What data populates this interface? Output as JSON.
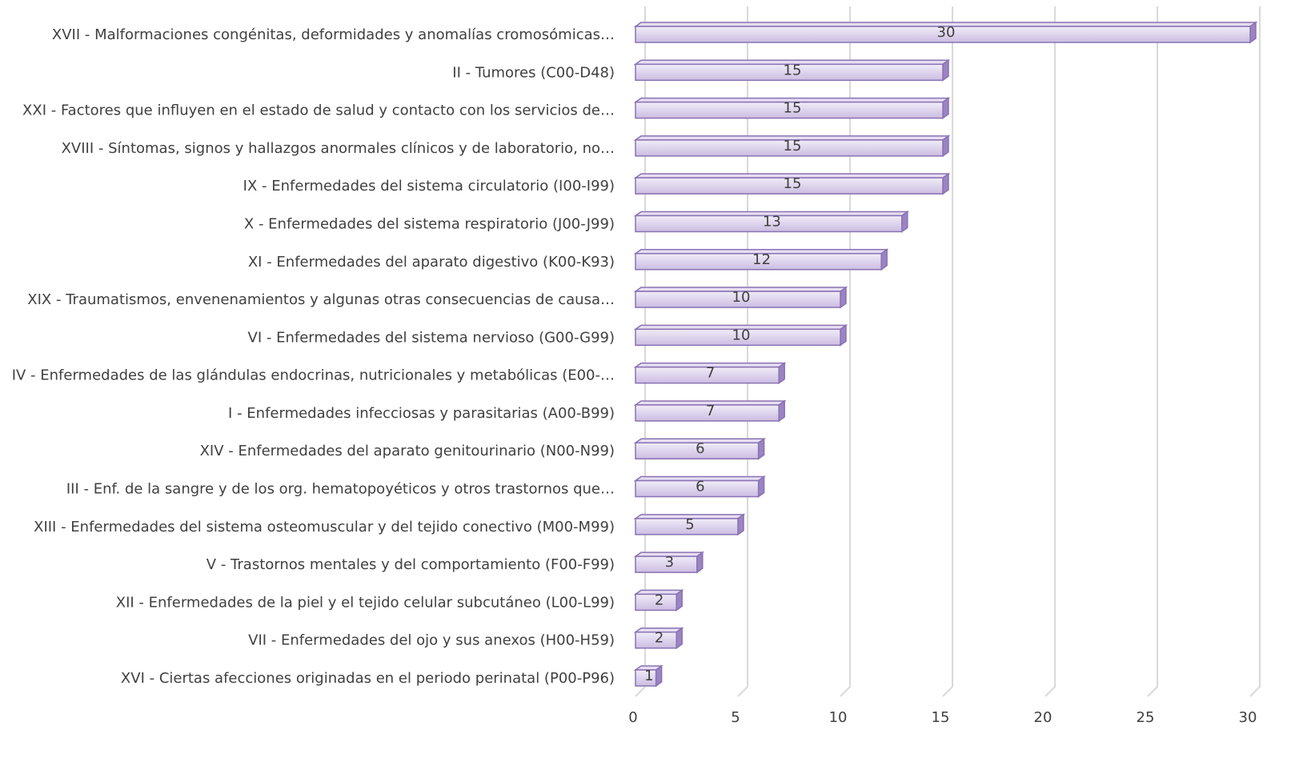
{
  "chart_data": {
    "type": "bar",
    "orientation": "horizontal",
    "categories": [
      "XVII - Malformaciones congénitas, deformidades y anomalías cromosómicas…",
      "II - Tumores (C00-D48)",
      "XXI - Factores que influyen en el estado de salud y contacto con los servicios de…",
      "XVIII - Síntomas, signos y hallazgos anormales clínicos y de laboratorio, no…",
      "IX - Enfermedades del sistema circulatorio (I00-I99)",
      "X - Enfermedades del sistema respiratorio (J00-J99)",
      "XI - Enfermedades del aparato digestivo (K00-K93)",
      "XIX - Traumatismos, envenenamientos y algunas otras consecuencias de causa…",
      "VI - Enfermedades del sistema nervioso (G00-G99)",
      "IV - Enfermedades de las glándulas endocrinas, nutricionales y metabólicas (E00-…",
      "I - Enfermedades infecciosas y parasitarias (A00-B99)",
      "XIV - Enfermedades del aparato genitourinario (N00-N99)",
      "III - Enf. de la sangre y de los org. hematopoyéticos y otros trastornos que…",
      "XIII - Enfermedades del sistema osteomuscular y del tejido conectivo (M00-M99)",
      "V - Trastornos mentales y del comportamiento (F00-F99)",
      "XII - Enfermedades de la piel y el tejido celular subcutáneo (L00-L99)",
      "VII - Enfermedades del ojo y sus anexos (H00-H59)",
      "XVI - Ciertas afecciones originadas en el periodo perinatal (P00-P96)"
    ],
    "values": [
      30,
      15,
      15,
      15,
      15,
      13,
      12,
      10,
      10,
      7,
      7,
      6,
      6,
      5,
      3,
      2,
      2,
      1
    ],
    "color": "#d9cdea",
    "xlim": [
      0,
      30
    ],
    "xticks": [
      0,
      5,
      10,
      15,
      20,
      25,
      30
    ],
    "grid": true
  }
}
